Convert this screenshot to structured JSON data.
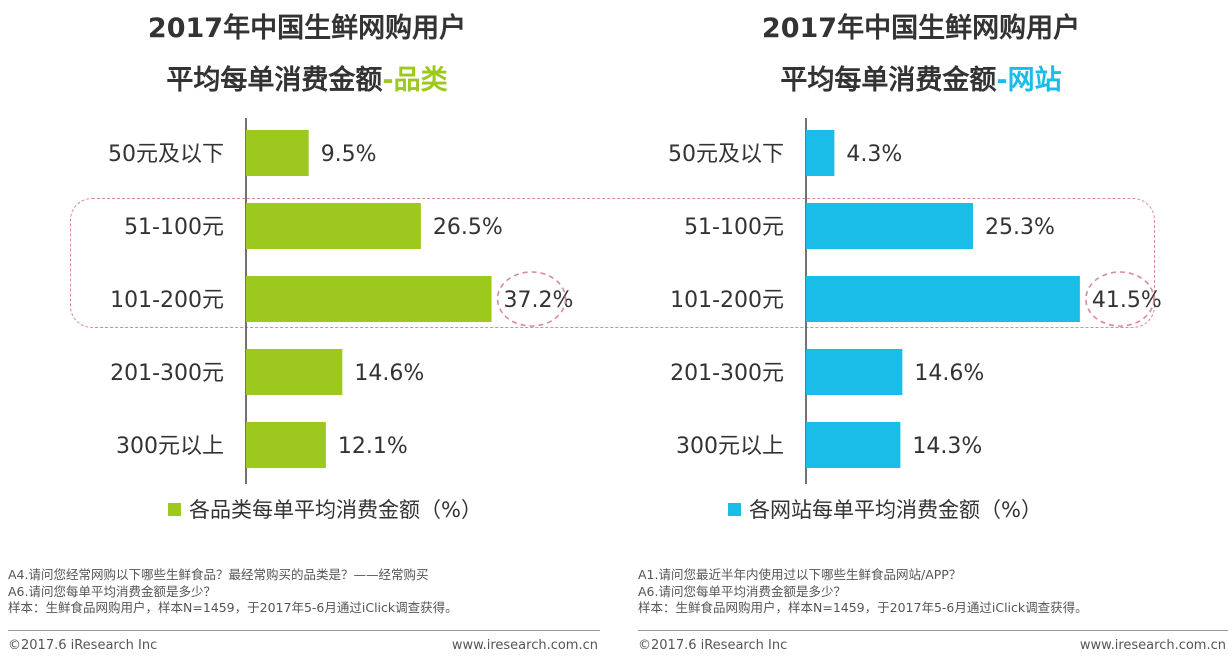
{
  "chart_data": [
    {
      "type": "bar",
      "orientation": "horizontal",
      "title": [
        "2017年中国生鲜网购用户",
        "平均每单消费金额-品类"
      ],
      "title_main": "平均每单消费金额",
      "title_accent": "-品类",
      "categories": [
        "50元及以下",
        "51-100元",
        "101-200元",
        "201-300元",
        "300元以上"
      ],
      "series": [
        {
          "name": "各品类每单平均消费金额（%）",
          "values": [
            9.5,
            26.5,
            37.2,
            14.6,
            12.1
          ]
        }
      ],
      "value_labels": [
        "9.5%",
        "26.5%",
        "37.2%",
        "14.6%",
        "12.1%"
      ],
      "unit": "%",
      "xlim": [
        0,
        50
      ],
      "highlight_categories": [
        "51-100元",
        "101-200元"
      ],
      "highlight_value": "37.2%",
      "color": "#9dc81e",
      "legend_position": "bottom",
      "grid": false
    },
    {
      "type": "bar",
      "orientation": "horizontal",
      "title": [
        "2017年中国生鲜网购用户",
        "平均每单消费金额-网站"
      ],
      "title_main": "平均每单消费金额",
      "title_accent": "-网站",
      "categories": [
        "50元及以下",
        "51-100元",
        "101-200元",
        "201-300元",
        "300元以上"
      ],
      "series": [
        {
          "name": "各网站每单平均消费金额（%）",
          "values": [
            4.3,
            25.3,
            41.5,
            14.6,
            14.3
          ]
        }
      ],
      "value_labels": [
        "4.3%",
        "25.3%",
        "41.5%",
        "14.6%",
        "14.3%"
      ],
      "unit": "%",
      "xlim": [
        0,
        50
      ],
      "highlight_categories": [
        "51-100元",
        "101-200元"
      ],
      "highlight_value": "41.5%",
      "color": "#19bde8",
      "legend_position": "bottom",
      "grid": false
    }
  ],
  "titles": {
    "line1": "2017年中国生鲜网购用户"
  },
  "notes": {
    "left": [
      "A4.请问您经常网购以下哪些生鲜食品？最经常购买的品类是？——经常购买",
      "A6.请问您每单平均消费金额是多少？",
      "样本：生鲜食品网购用户，样本N=1459，于2017年5-6月通过iClick调查获得。"
    ],
    "right": [
      "A1.请问您最近半年内使用过以下哪些生鲜食品网站/APP？",
      "A6.请问您每单平均消费金额是多少？",
      "样本：生鲜食品网购用户，样本N=1459，于2017年5-6月通过iClick调查获得。"
    ]
  },
  "footer": {
    "copyright": "©2017.6 iResearch Inc",
    "website": "www.iresearch.com.cn"
  }
}
